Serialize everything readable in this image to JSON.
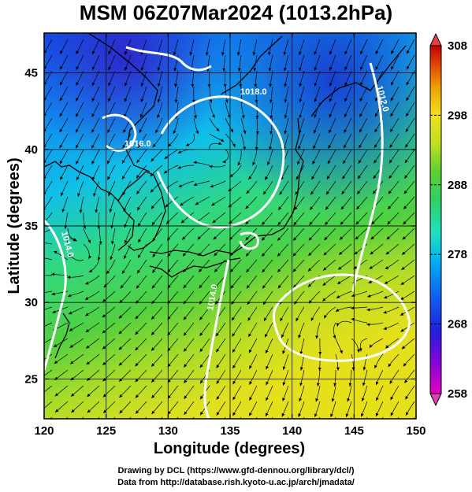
{
  "title": "MSM 06Z07Mar2024 (1013.2hPa)",
  "chart_data": {
    "type": "heatmap",
    "title": "MSM 06Z07Mar2024 (1013.2hPa)",
    "xlabel": "Longitude (degrees)",
    "ylabel": "Latitude  (degrees)",
    "xlim": [
      120,
      150
    ],
    "ylim": [
      22.4,
      47.6
    ],
    "x_ticks": [
      "120",
      "125",
      "130",
      "135",
      "140",
      "145",
      "150"
    ],
    "y_ticks": [
      "25",
      "30",
      "35",
      "40",
      "45"
    ],
    "grid": true,
    "colorbar": {
      "min": 258,
      "max": 308,
      "tick_labels": [
        "308",
        "298",
        "288",
        "278",
        "268",
        "258"
      ],
      "colors": [
        "#e000c0",
        "#9000d8",
        "#2020e0",
        "#1060f0",
        "#00b0f0",
        "#20e0c0",
        "#30d060",
        "#60d030",
        "#c0e020",
        "#f0e020",
        "#f0a000",
        "#e04000",
        "#c00000"
      ]
    },
    "contour_labels": [
      "1018.0",
      "1012.0",
      "1016.0",
      "1014.0",
      "1014.0"
    ],
    "overlays": [
      "streamlines",
      "coastlines",
      "pressure contours (white)"
    ]
  },
  "credits": {
    "line1": "Drawing by DCL (https://www.gfd-dennou.org/library/dcl/)",
    "line2": "Data from http://database.rish.kyoto-u.ac.jp/arch/jmadata/"
  }
}
